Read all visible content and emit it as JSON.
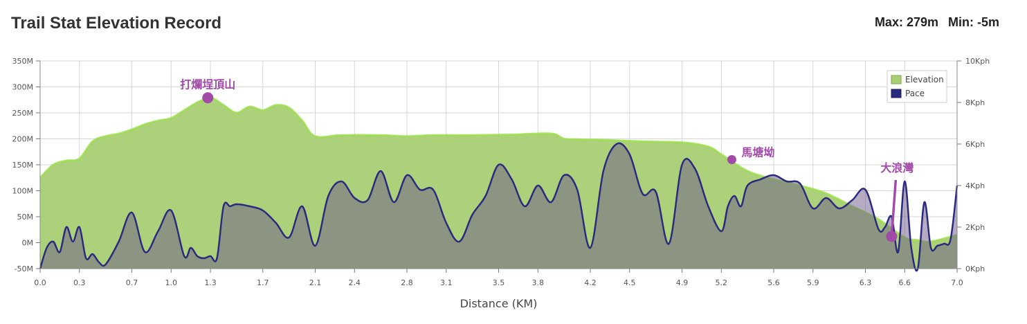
{
  "header": {
    "title": "Trail Stat Elevation Record",
    "max_label": "Max: 279m",
    "min_label": "Min: -5m"
  },
  "colors": {
    "elevation_fill": "#a9cf74",
    "elevation_line": "#9adf4a",
    "pace_line": "#2b2a7e",
    "pace_fill": "#6b5a8a",
    "annotation": "#a14aa8",
    "grid": "#d6d6d6"
  },
  "chart_data": {
    "type": "area",
    "xlabel": "Distance (KM)",
    "x_range": [
      0,
      7.0
    ],
    "x_ticks": [
      "0.0",
      "0.3",
      "0.7",
      "1.0",
      "1.3",
      "1.7",
      "2.1",
      "2.4",
      "2.8",
      "3.1",
      "3.5",
      "3.8",
      "4.2",
      "4.5",
      "4.9",
      "5.2",
      "5.6",
      "5.9",
      "6.3",
      "6.6",
      "7.0"
    ],
    "y_left_range": [
      -50,
      350
    ],
    "y_left_ticks": [
      "350M",
      "300M",
      "250M",
      "200M",
      "150M",
      "100M",
      "50M",
      "0M",
      "-50M"
    ],
    "y_right_range": [
      0,
      10
    ],
    "y_right_ticks": [
      "10Kph",
      "8Kph",
      "6Kph",
      "4Kph",
      "2Kph",
      "0Kph"
    ],
    "legend_position": "top-right",
    "grid": true,
    "series": [
      {
        "name": "Elevation",
        "axis": "left",
        "x": [
          0.0,
          0.1,
          0.2,
          0.3,
          0.4,
          0.5,
          0.6,
          0.7,
          0.8,
          0.9,
          1.0,
          1.1,
          1.2,
          1.3,
          1.4,
          1.5,
          1.6,
          1.7,
          1.8,
          1.9,
          2.0,
          2.1,
          2.3,
          2.6,
          2.8,
          3.0,
          3.3,
          3.6,
          3.9,
          4.0,
          4.1,
          4.3,
          4.6,
          4.9,
          5.1,
          5.2,
          5.4,
          5.6,
          5.8,
          6.0,
          6.2,
          6.4,
          6.6,
          6.7,
          6.8,
          7.0
        ],
        "y": [
          125,
          150,
          158,
          162,
          195,
          205,
          210,
          218,
          228,
          235,
          240,
          255,
          270,
          279,
          265,
          250,
          262,
          255,
          265,
          260,
          235,
          205,
          207,
          207,
          205,
          207,
          207,
          208,
          210,
          200,
          199,
          198,
          195,
          193,
          185,
          170,
          138,
          122,
          110,
          95,
          70,
          45,
          10,
          5,
          2,
          15
        ]
      },
      {
        "name": "Pace",
        "axis": "right",
        "x": [
          0.0,
          0.05,
          0.1,
          0.15,
          0.2,
          0.25,
          0.3,
          0.35,
          0.4,
          0.45,
          0.5,
          0.6,
          0.7,
          0.8,
          0.9,
          1.0,
          1.1,
          1.15,
          1.2,
          1.25,
          1.3,
          1.35,
          1.4,
          1.45,
          1.5,
          1.6,
          1.7,
          1.8,
          1.9,
          2.0,
          2.1,
          2.2,
          2.3,
          2.4,
          2.5,
          2.6,
          2.7,
          2.8,
          2.9,
          3.0,
          3.1,
          3.2,
          3.3,
          3.4,
          3.5,
          3.6,
          3.7,
          3.8,
          3.9,
          4.0,
          4.1,
          4.2,
          4.3,
          4.4,
          4.5,
          4.6,
          4.7,
          4.8,
          4.9,
          5.0,
          5.1,
          5.2,
          5.25,
          5.3,
          5.35,
          5.4,
          5.5,
          5.6,
          5.7,
          5.8,
          5.9,
          6.0,
          6.1,
          6.2,
          6.3,
          6.4,
          6.45,
          6.5,
          6.55,
          6.6,
          6.65,
          6.7,
          6.75,
          6.8,
          6.85,
          6.9,
          6.95,
          7.0
        ],
        "y": [
          0.0,
          1.0,
          1.3,
          0.8,
          2.0,
          1.3,
          2.0,
          0.5,
          0.7,
          0.3,
          0.2,
          1.3,
          2.7,
          0.8,
          1.8,
          2.8,
          0.6,
          1.0,
          0.6,
          0.5,
          0.6,
          0.5,
          3.0,
          3.0,
          3.1,
          3.0,
          2.8,
          2.2,
          1.5,
          3.0,
          1.1,
          3.5,
          4.2,
          3.4,
          3.3,
          4.7,
          3.2,
          4.5,
          3.8,
          3.8,
          2.2,
          1.3,
          2.6,
          3.5,
          5.0,
          4.3,
          3.0,
          4.0,
          3.2,
          4.5,
          3.8,
          1.0,
          4.7,
          6.0,
          5.5,
          3.6,
          3.7,
          1.2,
          5.0,
          4.8,
          3.0,
          1.8,
          3.0,
          3.5,
          3.0,
          4.0,
          4.3,
          4.5,
          4.2,
          4.1,
          2.9,
          3.4,
          2.9,
          3.3,
          3.8,
          1.9,
          2.0,
          2.5,
          0.8,
          4.2,
          1.0,
          0.0,
          3.2,
          1.0,
          1.1,
          1.2,
          1.4,
          4.0
        ]
      }
    ],
    "annotations": [
      {
        "label": "打爛埕頂山",
        "x": 1.28,
        "y": 279
      },
      {
        "label": "馬塘坳",
        "x": 5.28,
        "y": 160
      },
      {
        "label": "大浪灣",
        "x": 6.5,
        "y": 12
      }
    ]
  }
}
